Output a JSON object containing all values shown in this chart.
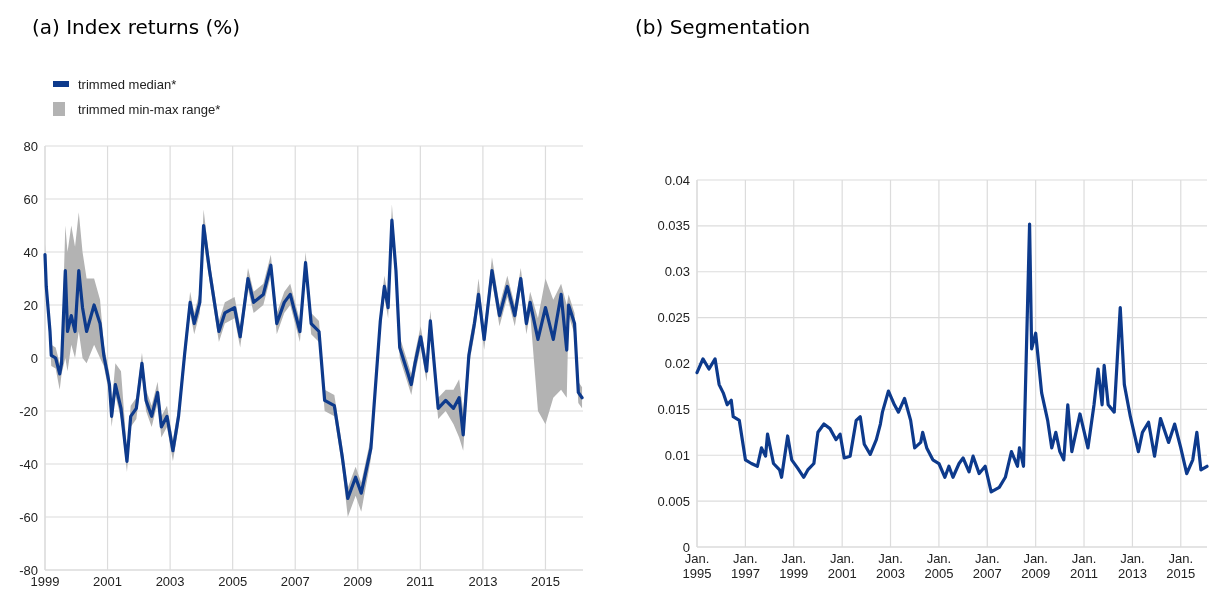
{
  "chart_data": [
    {
      "type": "line",
      "title": "(a) Index returns (%)",
      "xlim": [
        1999,
        2016.2
      ],
      "xticks": [
        1999,
        2001,
        2003,
        2005,
        2007,
        2009,
        2011,
        2013,
        2015
      ],
      "ylim": [
        -80,
        80
      ],
      "yticks": [
        -80,
        -60,
        -40,
        -20,
        0,
        20,
        40,
        60,
        80
      ],
      "grid": true,
      "legend": "top left",
      "annotations": [
        "trimmed min-max range*"
      ],
      "series": [
        {
          "name": "trimmed median*",
          "color": "#0d3a8c",
          "x": [
            1999.0,
            1999.04,
            1999.16,
            1999.2,
            1999.34,
            1999.47,
            1999.53,
            1999.65,
            1999.72,
            1999.84,
            1999.96,
            2000.08,
            2000.2,
            2000.33,
            2000.57,
            2000.76,
            2000.88,
            2001.06,
            2001.13,
            2001.25,
            2001.43,
            2001.62,
            2001.74,
            2001.92,
            2002.1,
            2002.23,
            2002.41,
            2002.6,
            2002.72,
            2002.9,
            2003.09,
            2003.27,
            2003.46,
            2003.64,
            2003.77,
            2003.95,
            2004.07,
            2004.26,
            2004.56,
            2004.75,
            2005.06,
            2005.24,
            2005.49,
            2005.67,
            2005.98,
            2006.22,
            2006.41,
            2006.65,
            2006.84,
            2007.15,
            2007.33,
            2007.51,
            2007.76,
            2007.94,
            2008.25,
            2008.5,
            2008.68,
            2008.93,
            2009.11,
            2009.42,
            2009.72,
            2009.85,
            2009.97,
            2010.09,
            2010.22,
            2010.34,
            2010.58,
            2010.71,
            2010.83,
            2011.01,
            2011.2,
            2011.32,
            2011.57,
            2011.81,
            2012.06,
            2012.24,
            2012.37,
            2012.55,
            2012.73,
            2012.86,
            2013.04,
            2013.29,
            2013.53,
            2013.78,
            2014.02,
            2014.21,
            2014.39,
            2014.51,
            2014.76,
            2015.0,
            2015.25,
            2015.5,
            2015.68,
            2015.74,
            2015.93,
            2016.05,
            2016.17
          ],
          "values": [
            39,
            27,
            10,
            1,
            0,
            -6,
            -2,
            33,
            10,
            16,
            10,
            33,
            19,
            10,
            20,
            13,
            1,
            -10,
            -22,
            -10,
            -19,
            -39,
            -22,
            -19,
            -2,
            -16,
            -22,
            -13,
            -26,
            -22,
            -35,
            -22,
            1,
            21,
            13,
            21,
            50,
            33,
            10,
            17,
            19,
            8,
            30,
            21,
            24,
            35,
            13,
            21,
            24,
            10,
            36,
            13,
            10,
            -16,
            -18,
            -37,
            -53,
            -45,
            -51,
            -34,
            14,
            27,
            19,
            52,
            33,
            4,
            -5,
            -10,
            -2,
            8,
            -5,
            14,
            -19,
            -16,
            -19,
            -15,
            -29,
            1,
            13,
            24,
            7,
            33,
            16,
            27,
            16,
            30,
            13,
            21,
            7,
            19,
            7,
            24,
            3,
            20,
            13,
            -13,
            -15
          ],
          "lower": [
            35,
            23,
            6,
            -3,
            -4,
            -12,
            -6,
            0,
            -5,
            5,
            0,
            10,
            0,
            -2,
            5,
            0,
            -3,
            -14,
            -26,
            -14,
            -23,
            -43,
            -26,
            -23,
            -6,
            -20,
            -26,
            -17,
            -30,
            -26,
            -39,
            -26,
            -3,
            17,
            9,
            17,
            44,
            29,
            6,
            13,
            15,
            4,
            26,
            17,
            20,
            31,
            9,
            17,
            20,
            6,
            32,
            9,
            6,
            -20,
            -22,
            -41,
            -60,
            -52,
            -58,
            -38,
            10,
            23,
            15,
            46,
            29,
            0,
            -9,
            -14,
            -6,
            4,
            -9,
            10,
            -23,
            -20,
            -25,
            -30,
            -35,
            -3,
            9,
            20,
            3,
            29,
            12,
            23,
            12,
            26,
            9,
            17,
            -20,
            -25,
            -15,
            -12,
            -15,
            16,
            9,
            -17,
            -19
          ],
          "upper": [
            43,
            31,
            14,
            5,
            4,
            -2,
            2,
            50,
            40,
            50,
            42,
            55,
            40,
            30,
            30,
            22,
            5,
            -6,
            -18,
            -2,
            -5,
            -35,
            -18,
            -15,
            2,
            -12,
            -18,
            -9,
            -22,
            -18,
            -31,
            -18,
            5,
            25,
            17,
            25,
            56,
            37,
            14,
            21,
            23,
            12,
            34,
            25,
            28,
            39,
            17,
            25,
            28,
            14,
            40,
            17,
            14,
            -12,
            -14,
            -33,
            -49,
            -41,
            -47,
            -30,
            18,
            31,
            23,
            58,
            37,
            8,
            -1,
            -6,
            2,
            12,
            -1,
            18,
            -15,
            -12,
            -12,
            -8,
            -20,
            5,
            17,
            30,
            11,
            38,
            20,
            31,
            20,
            34,
            17,
            25,
            15,
            30,
            22,
            28,
            20,
            24,
            17,
            -9,
            -11
          ]
        }
      ]
    },
    {
      "type": "line",
      "title": "(b) Segmentation",
      "xlim": [
        "1995-01",
        "2016-02"
      ],
      "xticks": [
        {
          "value": "1995-01",
          "label": "Jan. 1995"
        },
        {
          "value": "1997-01",
          "label": "Jan. 1997"
        },
        {
          "value": "1999-01",
          "label": "Jan. 1999"
        },
        {
          "value": "2001-01",
          "label": "Jan. 2001"
        },
        {
          "value": "2003-01",
          "label": "Jan. 2003"
        },
        {
          "value": "2005-01",
          "label": "Jan. 2005"
        },
        {
          "value": "2007-01",
          "label": "Jan. 2007"
        },
        {
          "value": "2009-01",
          "label": "Jan. 2009"
        },
        {
          "value": "2011-01",
          "label": "Jan. 2011"
        },
        {
          "value": "2013-01",
          "label": "Jan. 2013"
        },
        {
          "value": "2015-01",
          "label": "Jan. 2015"
        }
      ],
      "ylim": [
        0,
        0.04
      ],
      "yticks": [
        0,
        0.005,
        0.01,
        0.015,
        0.02,
        0.025,
        0.03,
        0.035,
        0.04
      ],
      "grid": true,
      "series": [
        {
          "color": "#0d3a8c",
          "x": [
            "1995-01",
            "1995-04",
            "1995-07",
            "1995-10",
            "1995-12",
            "1996-02",
            "1996-04",
            "1996-06",
            "1996-07",
            "1996-10",
            "1997-01",
            "1997-04",
            "1997-07",
            "1997-09",
            "1997-11",
            "1997-12",
            "1998-03",
            "1998-06",
            "1998-07",
            "1998-10",
            "1998-12",
            "1999-03",
            "1999-06",
            "1999-08",
            "1999-11",
            "2000-01",
            "2000-04",
            "2000-07",
            "2000-10",
            "2000-12",
            "2001-02",
            "2001-05",
            "2001-08",
            "2001-10",
            "2001-12",
            "2002-03",
            "2002-06",
            "2002-08",
            "2002-09",
            "2002-12",
            "2003-03",
            "2003-05",
            "2003-08",
            "2003-11",
            "2004-01",
            "2004-04",
            "2004-05",
            "2004-07",
            "2004-10",
            "2005-01",
            "2005-04",
            "2005-06",
            "2005-08",
            "2005-11",
            "2006-01",
            "2006-04",
            "2006-06",
            "2006-09",
            "2006-12",
            "2007-03",
            "2007-07",
            "2007-10",
            "2008-01",
            "2008-04",
            "2008-05",
            "2008-07",
            "2008-10",
            "2008-11",
            "2009-01",
            "2009-04",
            "2009-07",
            "2009-09",
            "2009-11",
            "2010-01",
            "2010-03",
            "2010-05",
            "2010-07",
            "2010-11",
            "2011-03",
            "2011-06",
            "2011-08",
            "2011-10",
            "2011-11",
            "2012-01",
            "2012-04",
            "2012-07",
            "2012-09",
            "2012-12",
            "2013-04",
            "2013-06",
            "2013-09",
            "2013-12",
            "2014-03",
            "2014-07",
            "2014-10",
            "2015-01",
            "2015-04",
            "2015-07",
            "2015-09",
            "2015-11",
            "2016-02"
          ],
          "values": [
            0.019,
            0.0205,
            0.0194,
            0.0205,
            0.0177,
            0.0168,
            0.0155,
            0.016,
            0.0142,
            0.0138,
            0.0095,
            0.0091,
            0.0088,
            0.0108,
            0.0099,
            0.0123,
            0.0091,
            0.0084,
            0.0076,
            0.0121,
            0.0095,
            0.0086,
            0.0076,
            0.0084,
            0.0091,
            0.0125,
            0.0134,
            0.0129,
            0.0117,
            0.0123,
            0.0097,
            0.0099,
            0.0138,
            0.0142,
            0.0112,
            0.0101,
            0.0117,
            0.0134,
            0.0147,
            0.017,
            0.0155,
            0.0147,
            0.0162,
            0.0138,
            0.0108,
            0.0114,
            0.0125,
            0.0108,
            0.0095,
            0.0091,
            0.0076,
            0.0088,
            0.0076,
            0.0091,
            0.0097,
            0.0082,
            0.0099,
            0.008,
            0.0088,
            0.006,
            0.0065,
            0.0076,
            0.0104,
            0.0088,
            0.0108,
            0.0088,
            0.0352,
            0.0216,
            0.0233,
            0.0168,
            0.0138,
            0.0108,
            0.0125,
            0.0104,
            0.0095,
            0.0155,
            0.0104,
            0.0145,
            0.0108,
            0.0155,
            0.0194,
            0.0155,
            0.0198,
            0.0155,
            0.0147,
            0.0261,
            0.0177,
            0.0142,
            0.0104,
            0.0125,
            0.0136,
            0.0099,
            0.014,
            0.0114,
            0.0134,
            0.0108,
            0.008,
            0.0095,
            0.0125,
            0.0084,
            0.0088
          ]
        }
      ]
    }
  ]
}
